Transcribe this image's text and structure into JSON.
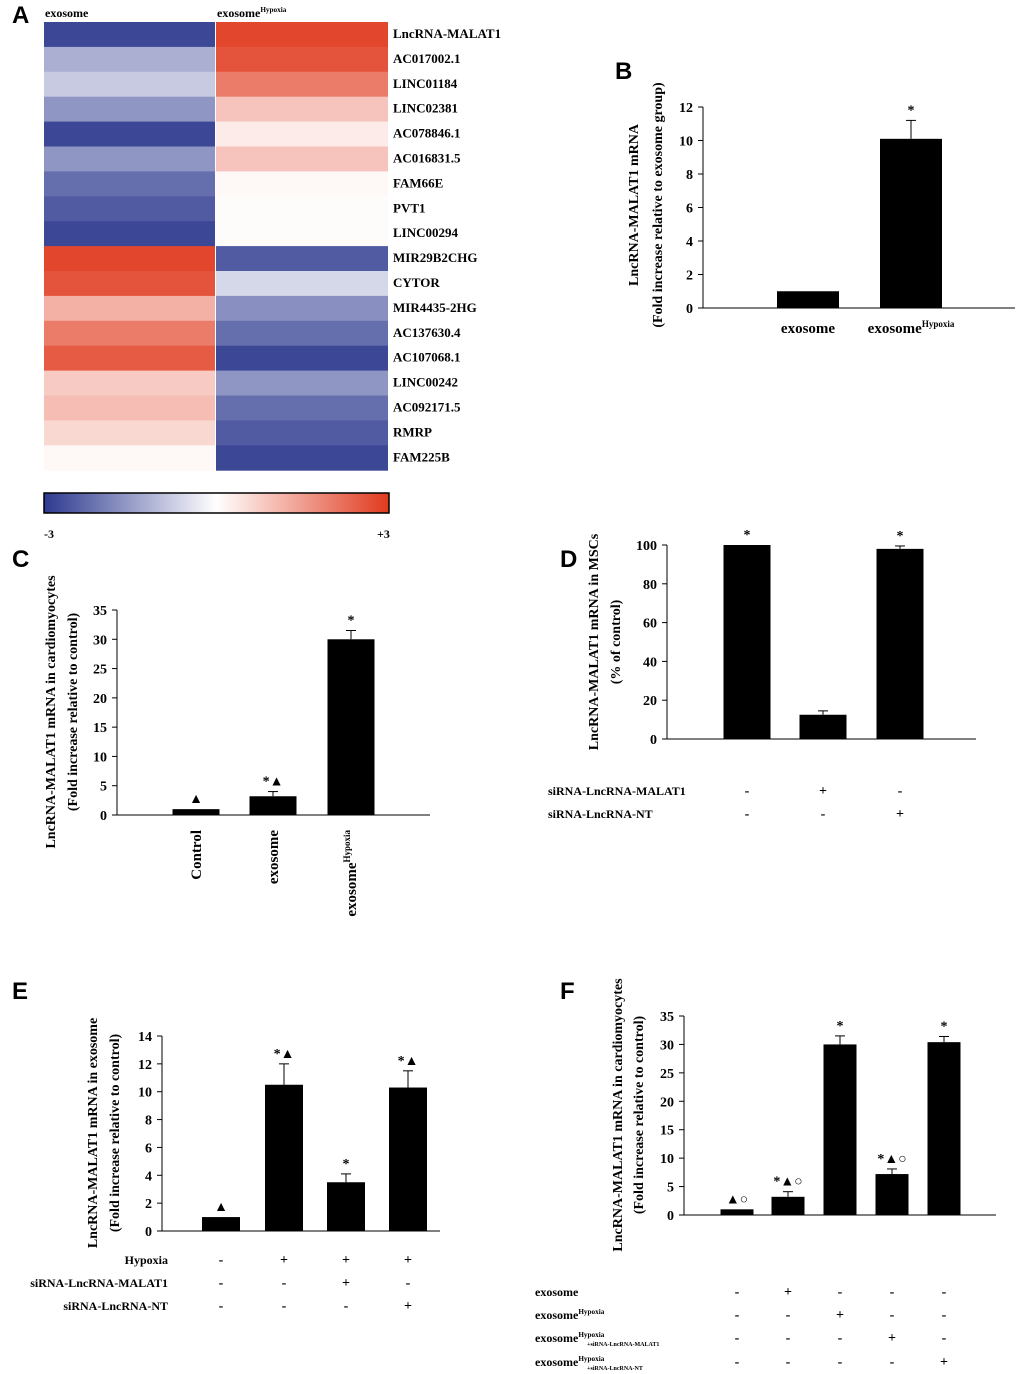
{
  "panel_letters": [
    "A",
    "B",
    "C",
    "D",
    "E",
    "F"
  ],
  "chart_data": [
    {
      "id": "A",
      "type": "heatmap",
      "columns": [
        "exosome",
        "exosome"
      ],
      "column_superscripts": [
        "",
        "Hypoxia"
      ],
      "rows": [
        "LncRNA-MALAT1",
        "AC017002.1",
        "LINC01184",
        "LINC02381",
        "AC078846.1",
        "AC016831.5",
        "FAM66E",
        "PVT1",
        "LINC00294",
        "MIR29B2CHG",
        "CYTOR",
        "MIR4435-2HG",
        "AC137630.4",
        "AC107068.1",
        "LINC00242",
        "AC092171.5",
        "RMRP",
        "FAM225B"
      ],
      "values": [
        [
          -2.8,
          2.8
        ],
        [
          -1.2,
          2.6
        ],
        [
          -0.8,
          2.0
        ],
        [
          -1.6,
          0.9
        ],
        [
          -2.8,
          0.3
        ],
        [
          -1.6,
          0.9
        ],
        [
          -2.2,
          0.1
        ],
        [
          -2.5,
          0.05
        ],
        [
          -2.8,
          0.05
        ],
        [
          2.8,
          -2.5
        ],
        [
          2.6,
          -0.6
        ],
        [
          1.2,
          -1.7
        ],
        [
          2.0,
          -2.2
        ],
        [
          2.5,
          -2.8
        ],
        [
          0.8,
          -1.6
        ],
        [
          1.0,
          -2.2
        ],
        [
          0.6,
          -2.5
        ],
        [
          0.1,
          -2.8
        ]
      ],
      "scale": {
        "min": -3,
        "max": 3,
        "min_label": "-3",
        "max_label": "+3",
        "low_color": "#2e3a8f",
        "mid_color": "#ffffff",
        "high_color": "#e03a1e"
      }
    },
    {
      "id": "B",
      "type": "bar",
      "ylabel": "LncRNA-MALAT1 mRNA",
      "ylabel2": "(Fold increase relative to exosome group)",
      "ylim": [
        0,
        12
      ],
      "yticks": [
        0,
        2,
        4,
        6,
        8,
        10,
        12
      ],
      "categories": [
        "exosome",
        "exosome"
      ],
      "category_superscripts": [
        "",
        "Hypoxia"
      ],
      "values": [
        1,
        10.1
      ],
      "errors": [
        0,
        1.1
      ],
      "annotations": [
        "",
        "*"
      ]
    },
    {
      "id": "C",
      "type": "bar",
      "ylabel": "LncRNA-MALAT1 mRNA in cardiomyocytes",
      "ylabel2": "(Fold increase relative to control)",
      "ylim": [
        0,
        35
      ],
      "yticks": [
        0,
        5,
        10,
        15,
        20,
        25,
        30,
        35
      ],
      "categories": [
        "Control",
        "exosome",
        "exosome"
      ],
      "category_superscripts": [
        "",
        "",
        "Hypoxia"
      ],
      "values": [
        1,
        3.2,
        30
      ],
      "errors": [
        0,
        0.8,
        1.5
      ],
      "annotations": [
        "▲",
        "*▲",
        "*"
      ]
    },
    {
      "id": "D",
      "type": "bar",
      "ylabel": "LncRNA-MALAT1 mRNA in MSCs",
      "ylabel2": "(% of control)",
      "ylim": [
        0,
        100
      ],
      "yticks": [
        0,
        20,
        40,
        60,
        80,
        100
      ],
      "values": [
        100,
        12.5,
        98
      ],
      "errors": [
        0,
        2,
        1.5
      ],
      "annotations": [
        "*",
        "",
        "*"
      ],
      "conditions": [
        {
          "label": "siRNA-LncRNA-MALAT1",
          "signs": [
            "-",
            "+",
            "-"
          ]
        },
        {
          "label": "siRNA-LncRNA-NT",
          "signs": [
            "-",
            "-",
            "+"
          ]
        }
      ]
    },
    {
      "id": "E",
      "type": "bar",
      "ylabel": "LncRNA-MALAT1 mRNA in exosome",
      "ylabel2": "(Fold increase relative to control)",
      "ylim": [
        0,
        14
      ],
      "yticks": [
        0,
        2,
        4,
        6,
        8,
        10,
        12,
        14
      ],
      "values": [
        1,
        10.5,
        3.5,
        10.3
      ],
      "errors": [
        0,
        1.5,
        0.6,
        1.2
      ],
      "annotations": [
        "▲",
        "*▲",
        "*",
        "*▲"
      ],
      "conditions": [
        {
          "label": "Hypoxia",
          "signs": [
            "-",
            "+",
            "+",
            "+"
          ]
        },
        {
          "label": "siRNA-LncRNA-MALAT1",
          "signs": [
            "-",
            "-",
            "+",
            "-"
          ]
        },
        {
          "label": "siRNA-LncRNA-NT",
          "signs": [
            "-",
            "-",
            "-",
            "+"
          ]
        }
      ]
    },
    {
      "id": "F",
      "type": "bar",
      "ylabel": "LncRNA-MALAT1 mRNA in cardiomyocytes",
      "ylabel2": "(Fold increase relative to control)",
      "ylim": [
        0,
        35
      ],
      "yticks": [
        0,
        5,
        10,
        15,
        20,
        25,
        30,
        35
      ],
      "values": [
        1,
        3.2,
        30,
        7.2,
        30.4
      ],
      "errors": [
        0,
        0.9,
        1.5,
        0.9,
        1.0
      ],
      "annotations": [
        "▲○",
        "*▲○",
        "*",
        "*▲○",
        "*"
      ],
      "conditions": [
        {
          "label": "exosome",
          "sup": "",
          "sub": "",
          "signs": [
            "-",
            "+",
            "-",
            "-",
            "-"
          ]
        },
        {
          "label": "exosome",
          "sup": "Hypoxia",
          "sub": "",
          "signs": [
            "-",
            "-",
            "+",
            "-",
            "-"
          ]
        },
        {
          "label": "exosome",
          "sup": "Hypoxia",
          "sub": "+siRNA-LncRNA-MALAT1",
          "signs": [
            "-",
            "-",
            "-",
            "+",
            "-"
          ]
        },
        {
          "label": "exosome",
          "sup": "Hypoxia",
          "sub": "+siRNA-LncRNA-NT",
          "signs": [
            "-",
            "-",
            "-",
            "-",
            "+"
          ]
        }
      ]
    }
  ]
}
